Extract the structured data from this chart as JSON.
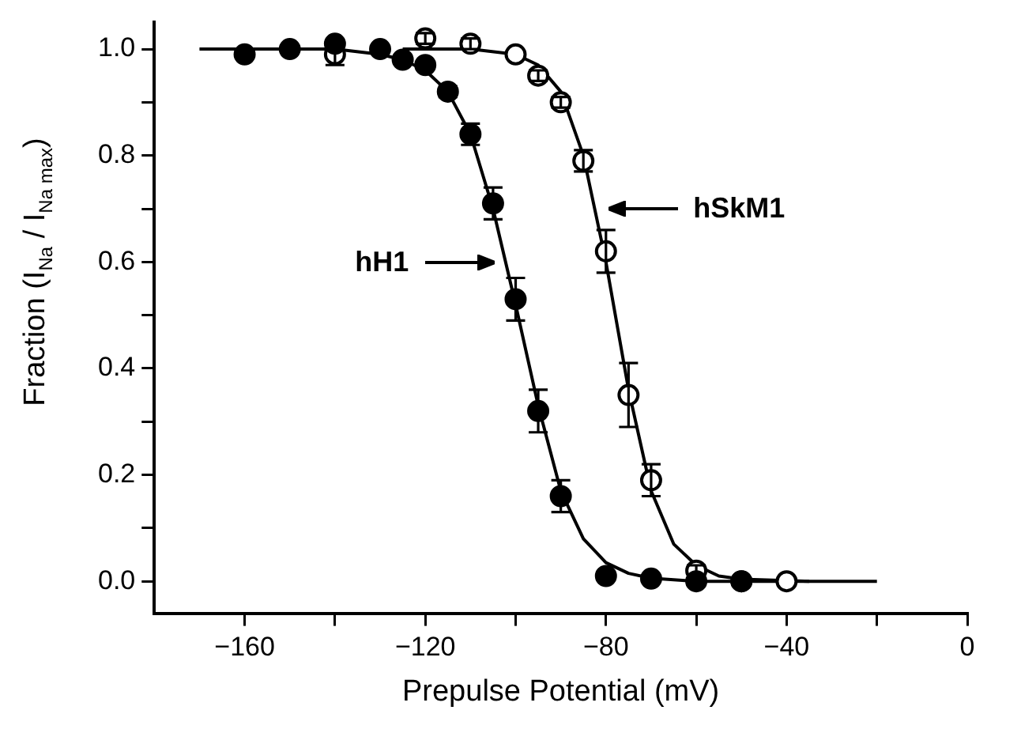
{
  "chart_data": {
    "type": "scatter",
    "xlabel": "Prepulse Potential (mV)",
    "ylabel": "Fraction (I$_{Na}$ / I$_{Na max}$)",
    "xlim": [
      -180,
      0
    ],
    "xticks": [
      -160,
      {
        "value": -140,
        "label": null
      },
      -120,
      {
        "value": -100,
        "label": null
      },
      -80,
      {
        "value": -60,
        "label": null
      },
      -40,
      {
        "value": -20,
        "label": null
      },
      0
    ],
    "ylim": [
      -0.06,
      1.05
    ],
    "yticks": [
      {
        "value": 0,
        "label": "0.0"
      },
      {
        "value": 0.1,
        "label": null
      },
      0.2,
      {
        "value": 0.3,
        "label": null
      },
      0.4,
      {
        "value": 0.5,
        "label": null
      },
      0.6,
      {
        "value": 0.7,
        "label": null
      },
      0.8,
      {
        "value": 0.9,
        "label": null
      },
      {
        "value": 1,
        "label": "1.0"
      }
    ],
    "grid": false,
    "series": [
      {
        "name": "hH1",
        "color": "#000000",
        "marker": "circle",
        "x": [
          -160,
          -150,
          -140,
          -130,
          -125,
          -120,
          -115,
          -110,
          -105,
          -100,
          -95,
          -90,
          -80,
          -70,
          -60,
          -50
        ],
        "values": [
          0.99,
          1.0,
          1.01,
          1.0,
          0.98,
          0.97,
          0.92,
          0.84,
          0.71,
          0.53,
          0.32,
          0.16,
          0.01,
          0.005,
          0.0,
          0.0
        ],
        "errors": [
          null,
          null,
          null,
          null,
          null,
          null,
          0.01,
          0.02,
          0.03,
          0.04,
          0.04,
          0.03,
          null,
          null,
          null,
          null
        ]
      },
      {
        "name": "hSkM1",
        "color": "#000000",
        "marker": "circle",
        "x": [
          -140,
          -120,
          -110,
          -100,
          -95,
          -90,
          -85,
          -80,
          -75,
          -70,
          -60,
          -50,
          -40
        ],
        "values": [
          0.99,
          1.02,
          1.01,
          0.99,
          0.95,
          0.9,
          0.79,
          0.62,
          0.35,
          0.19,
          0.02,
          0.0,
          0.0
        ],
        "errors": [
          0.02,
          0.01,
          0.01,
          null,
          0.01,
          0.01,
          0.02,
          0.04,
          0.06,
          0.03,
          0.01,
          null,
          null
        ]
      },
      {
        "type": "line",
        "color": "#000000",
        "marker": "none",
        "x": [
          -170,
          -140,
          -130,
          -125,
          -120,
          -115,
          -110,
          -105,
          -100,
          -95,
          -90,
          -85,
          -80,
          -75,
          -70,
          -60,
          -20
        ],
        "values": [
          1.0,
          1.0,
          0.99,
          0.98,
          0.96,
          0.92,
          0.84,
          0.7,
          0.52,
          0.33,
          0.17,
          0.08,
          0.035,
          0.015,
          0.006,
          0.0,
          0.0
        ]
      },
      {
        "type": "line",
        "color": "#000000",
        "marker": "none",
        "x": [
          -125,
          -110,
          -100,
          -95,
          -90,
          -85,
          -80,
          -75,
          -70,
          -65,
          -60,
          -55,
          -50,
          -35
        ],
        "values": [
          1.0,
          1.0,
          0.99,
          0.97,
          0.92,
          0.8,
          0.6,
          0.36,
          0.17,
          0.07,
          0.03,
          0.01,
          0.004,
          0.0
        ]
      }
    ]
  }
}
